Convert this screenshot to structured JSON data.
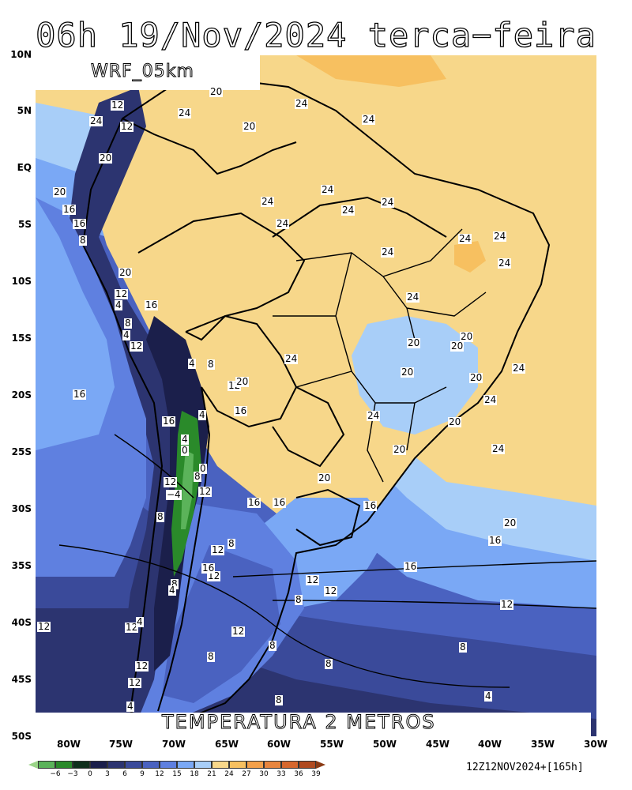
{
  "title": "06h 19/Nov/2024 terca−feira",
  "model_label": "WRF_05km",
  "product_label": "TEMPERATURA 2 METROS",
  "run_info": "12Z12NOV2024+[165h]",
  "lat_labels": [
    "10N",
    "5N",
    "EQ",
    "5S",
    "10S",
    "15S",
    "20S",
    "25S",
    "30S",
    "35S",
    "40S",
    "45S",
    "50S"
  ],
  "lon_labels": [
    "80W",
    "75W",
    "70W",
    "65W",
    "60W",
    "55W",
    "50W",
    "45W",
    "40W",
    "35W",
    "30W"
  ],
  "colorbar": {
    "labels": [
      "−6",
      "−3",
      "0",
      "3",
      "6",
      "9",
      "12",
      "15",
      "18",
      "21",
      "24",
      "27",
      "30",
      "33",
      "36",
      "39"
    ],
    "colors": [
      "#5bb35a",
      "#2a8a2a",
      "#0f2f1c",
      "#1b1f4b",
      "#2c3470",
      "#3a4a9a",
      "#4a62c0",
      "#5f80e0",
      "#7aa8f5",
      "#a8cef8",
      "#f7d78a",
      "#f7c060",
      "#f4a04a",
      "#e8853e",
      "#d6672e",
      "#b04a20"
    ],
    "under_color": "#9ad487",
    "over_color": "#8a3a14"
  },
  "contour_labels": [
    {
      "t": "12"
    },
    {
      "t": "24"
    },
    {
      "t": "12"
    },
    {
      "t": "20"
    },
    {
      "t": "20"
    },
    {
      "t": "24"
    },
    {
      "t": "20"
    },
    {
      "t": "24"
    },
    {
      "t": "24"
    },
    {
      "t": "20"
    },
    {
      "t": "16"
    },
    {
      "t": "16"
    },
    {
      "t": "8"
    },
    {
      "t": "24"
    },
    {
      "t": "24"
    },
    {
      "t": "24"
    },
    {
      "t": "24"
    },
    {
      "t": "24"
    },
    {
      "t": "24"
    },
    {
      "t": "24"
    },
    {
      "t": "24"
    },
    {
      "t": "24"
    },
    {
      "t": "24"
    },
    {
      "t": "20"
    },
    {
      "t": "12"
    },
    {
      "t": "4"
    },
    {
      "t": "16"
    },
    {
      "t": "8"
    },
    {
      "t": "4"
    },
    {
      "t": "12"
    },
    {
      "t": "4"
    },
    {
      "t": "8"
    },
    {
      "t": "24"
    },
    {
      "t": "20"
    },
    {
      "t": "20"
    },
    {
      "t": "20"
    },
    {
      "t": "20"
    },
    {
      "t": "24"
    },
    {
      "t": "12"
    },
    {
      "t": "20"
    },
    {
      "t": "20"
    },
    {
      "t": "16"
    },
    {
      "t": "16"
    },
    {
      "t": "4"
    },
    {
      "t": "16"
    },
    {
      "t": "4"
    },
    {
      "t": "0"
    },
    {
      "t": "24"
    },
    {
      "t": "24"
    },
    {
      "t": "20"
    },
    {
      "t": "20"
    },
    {
      "t": "24"
    },
    {
      "t": "0"
    },
    {
      "t": "8"
    },
    {
      "t": "12"
    },
    {
      "t": "12"
    },
    {
      "t": "−4"
    },
    {
      "t": "20"
    },
    {
      "t": "16"
    },
    {
      "t": "16"
    },
    {
      "t": "16"
    },
    {
      "t": "8"
    },
    {
      "t": "12"
    },
    {
      "t": "20"
    },
    {
      "t": "16"
    },
    {
      "t": "8"
    },
    {
      "t": "12"
    },
    {
      "t": "16"
    },
    {
      "t": "16"
    },
    {
      "t": "12"
    },
    {
      "t": "8"
    },
    {
      "t": "4"
    },
    {
      "t": "12"
    },
    {
      "t": "12"
    },
    {
      "t": "8"
    },
    {
      "t": "12"
    },
    {
      "t": "12"
    },
    {
      "t": "12"
    },
    {
      "t": "12"
    },
    {
      "t": "8"
    },
    {
      "t": "8"
    },
    {
      "t": "8"
    },
    {
      "t": "8"
    },
    {
      "t": "12"
    },
    {
      "t": "8"
    },
    {
      "t": "4"
    },
    {
      "t": "4"
    },
    {
      "t": "4"
    }
  ]
}
